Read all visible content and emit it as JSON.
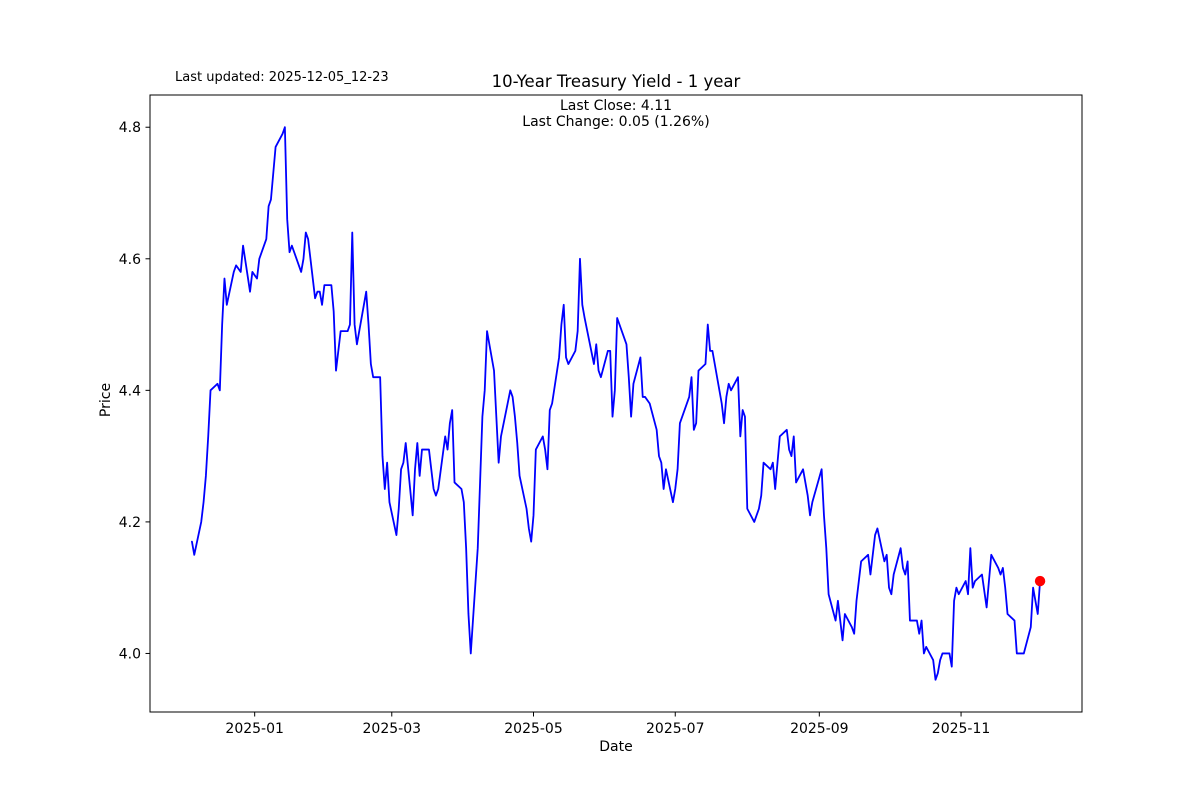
{
  "header": {
    "last_updated": "Last updated: 2025-12-05_12-23",
    "title": "10-Year Treasury Yield - 1 year",
    "subtitle_line1": "Last Close: 4.11",
    "subtitle_line2": "Last Change: 0.05 (1.26%)"
  },
  "chart_data": {
    "type": "line",
    "title": "10-Year Treasury Yield - 1 year",
    "xlabel": "Date",
    "ylabel": "Price",
    "last_close": 4.11,
    "last_change": 0.05,
    "last_change_pct": "1.26%",
    "line_color": "#0000ff",
    "marker_color": "#ff0000",
    "grid": false,
    "legend_position": "none",
    "ylim": [
      3.911,
      4.849
    ],
    "yticks": [
      4.0,
      4.2,
      4.4,
      4.6,
      4.8
    ],
    "ytick_labels": [
      "4.0",
      "4.2",
      "4.4",
      "4.6",
      "4.8"
    ],
    "xtick_dates": [
      "2025-01-01",
      "2025-03-01",
      "2025-05-01",
      "2025-07-01",
      "2025-09-01",
      "2025-11-01"
    ],
    "xtick_labels": [
      "2025-01",
      "2025-03",
      "2025-05",
      "2025-07",
      "2025-09",
      "2025-11"
    ],
    "x_margin_frac": 0.045,
    "dates": [
      "2024-12-05",
      "2024-12-06",
      "2024-12-09",
      "2024-12-10",
      "2024-12-11",
      "2024-12-12",
      "2024-12-13",
      "2024-12-16",
      "2024-12-17",
      "2024-12-18",
      "2024-12-19",
      "2024-12-20",
      "2024-12-23",
      "2024-12-24",
      "2024-12-26",
      "2024-12-27",
      "2024-12-30",
      "2024-12-31",
      "2025-01-02",
      "2025-01-03",
      "2025-01-06",
      "2025-01-07",
      "2025-01-08",
      "2025-01-10",
      "2025-01-13",
      "2025-01-14",
      "2025-01-15",
      "2025-01-16",
      "2025-01-17",
      "2025-01-21",
      "2025-01-22",
      "2025-01-23",
      "2025-01-24",
      "2025-01-27",
      "2025-01-28",
      "2025-01-29",
      "2025-01-30",
      "2025-01-31",
      "2025-02-03",
      "2025-02-04",
      "2025-02-05",
      "2025-02-06",
      "2025-02-07",
      "2025-02-10",
      "2025-02-11",
      "2025-02-12",
      "2025-02-13",
      "2025-02-14",
      "2025-02-18",
      "2025-02-19",
      "2025-02-20",
      "2025-02-21",
      "2025-02-24",
      "2025-02-25",
      "2025-02-26",
      "2025-02-27",
      "2025-02-28",
      "2025-03-03",
      "2025-03-04",
      "2025-03-05",
      "2025-03-06",
      "2025-03-07",
      "2025-03-10",
      "2025-03-11",
      "2025-03-12",
      "2025-03-13",
      "2025-03-14",
      "2025-03-17",
      "2025-03-18",
      "2025-03-19",
      "2025-03-20",
      "2025-03-21",
      "2025-03-24",
      "2025-03-25",
      "2025-03-26",
      "2025-03-27",
      "2025-03-28",
      "2025-03-31",
      "2025-04-01",
      "2025-04-02",
      "2025-04-03",
      "2025-04-04",
      "2025-04-07",
      "2025-04-08",
      "2025-04-09",
      "2025-04-10",
      "2025-04-11",
      "2025-04-14",
      "2025-04-15",
      "2025-04-16",
      "2025-04-17",
      "2025-04-21",
      "2025-04-22",
      "2025-04-23",
      "2025-04-24",
      "2025-04-25",
      "2025-04-28",
      "2025-04-29",
      "2025-04-30",
      "2025-05-01",
      "2025-05-02",
      "2025-05-05",
      "2025-05-06",
      "2025-05-07",
      "2025-05-08",
      "2025-05-09",
      "2025-05-12",
      "2025-05-13",
      "2025-05-14",
      "2025-05-15",
      "2025-05-16",
      "2025-05-19",
      "2025-05-20",
      "2025-05-21",
      "2025-05-22",
      "2025-05-23",
      "2025-05-27",
      "2025-05-28",
      "2025-05-29",
      "2025-05-30",
      "2025-06-02",
      "2025-06-03",
      "2025-06-04",
      "2025-06-05",
      "2025-06-06",
      "2025-06-09",
      "2025-06-10",
      "2025-06-11",
      "2025-06-12",
      "2025-06-13",
      "2025-06-16",
      "2025-06-17",
      "2025-06-18",
      "2025-06-20",
      "2025-06-23",
      "2025-06-24",
      "2025-06-25",
      "2025-06-26",
      "2025-06-27",
      "2025-06-30",
      "2025-07-01",
      "2025-07-02",
      "2025-07-03",
      "2025-07-07",
      "2025-07-08",
      "2025-07-09",
      "2025-07-10",
      "2025-07-11",
      "2025-07-14",
      "2025-07-15",
      "2025-07-16",
      "2025-07-17",
      "2025-07-18",
      "2025-07-21",
      "2025-07-22",
      "2025-07-23",
      "2025-07-24",
      "2025-07-25",
      "2025-07-28",
      "2025-07-29",
      "2025-07-30",
      "2025-07-31",
      "2025-08-01",
      "2025-08-04",
      "2025-08-05",
      "2025-08-06",
      "2025-08-07",
      "2025-08-08",
      "2025-08-11",
      "2025-08-12",
      "2025-08-13",
      "2025-08-14",
      "2025-08-15",
      "2025-08-18",
      "2025-08-19",
      "2025-08-20",
      "2025-08-21",
      "2025-08-22",
      "2025-08-25",
      "2025-08-26",
      "2025-08-27",
      "2025-08-28",
      "2025-08-29",
      "2025-09-02",
      "2025-09-03",
      "2025-09-04",
      "2025-09-05",
      "2025-09-08",
      "2025-09-09",
      "2025-09-10",
      "2025-09-11",
      "2025-09-12",
      "2025-09-15",
      "2025-09-16",
      "2025-09-17",
      "2025-09-18",
      "2025-09-19",
      "2025-09-22",
      "2025-09-23",
      "2025-09-24",
      "2025-09-25",
      "2025-09-26",
      "2025-09-29",
      "2025-09-30",
      "2025-10-01",
      "2025-10-02",
      "2025-10-03",
      "2025-10-06",
      "2025-10-07",
      "2025-10-08",
      "2025-10-09",
      "2025-10-10",
      "2025-10-13",
      "2025-10-14",
      "2025-10-15",
      "2025-10-16",
      "2025-10-17",
      "2025-10-20",
      "2025-10-21",
      "2025-10-22",
      "2025-10-23",
      "2025-10-24",
      "2025-10-27",
      "2025-10-28",
      "2025-10-29",
      "2025-10-30",
      "2025-10-31",
      "2025-11-03",
      "2025-11-04",
      "2025-11-05",
      "2025-11-06",
      "2025-11-07",
      "2025-11-10",
      "2025-11-12",
      "2025-11-13",
      "2025-11-14",
      "2025-11-17",
      "2025-11-18",
      "2025-11-19",
      "2025-11-20",
      "2025-11-21",
      "2025-11-24",
      "2025-11-25",
      "2025-11-26",
      "2025-11-28",
      "2025-12-01",
      "2025-12-02",
      "2025-12-03",
      "2025-12-04",
      "2025-12-05"
    ],
    "values": [
      4.17,
      4.15,
      4.2,
      4.23,
      4.27,
      4.33,
      4.4,
      4.41,
      4.4,
      4.5,
      4.57,
      4.53,
      4.58,
      4.59,
      4.58,
      4.62,
      4.55,
      4.58,
      4.57,
      4.6,
      4.63,
      4.68,
      4.69,
      4.77,
      4.79,
      4.8,
      4.66,
      4.61,
      4.62,
      4.58,
      4.6,
      4.64,
      4.63,
      4.54,
      4.55,
      4.55,
      4.53,
      4.56,
      4.56,
      4.52,
      4.43,
      4.46,
      4.49,
      4.49,
      4.5,
      4.64,
      4.5,
      4.47,
      4.55,
      4.5,
      4.44,
      4.42,
      4.42,
      4.3,
      4.25,
      4.29,
      4.23,
      4.18,
      4.22,
      4.28,
      4.29,
      4.32,
      4.21,
      4.28,
      4.32,
      4.27,
      4.31,
      4.31,
      4.28,
      4.25,
      4.24,
      4.25,
      4.33,
      4.31,
      4.35,
      4.37,
      4.26,
      4.25,
      4.23,
      4.16,
      4.06,
      4.0,
      4.16,
      4.26,
      4.36,
      4.4,
      4.49,
      4.43,
      4.36,
      4.29,
      4.33,
      4.4,
      4.39,
      4.36,
      4.32,
      4.27,
      4.22,
      4.19,
      4.17,
      4.21,
      4.31,
      4.33,
      4.31,
      4.28,
      4.37,
      4.38,
      4.45,
      4.5,
      4.53,
      4.45,
      4.44,
      4.46,
      4.49,
      4.6,
      4.53,
      4.51,
      4.44,
      4.47,
      4.43,
      4.42,
      4.46,
      4.46,
      4.36,
      4.4,
      4.51,
      4.48,
      4.47,
      4.42,
      4.36,
      4.41,
      4.45,
      4.39,
      4.39,
      4.38,
      4.34,
      4.3,
      4.29,
      4.25,
      4.28,
      4.23,
      4.25,
      4.28,
      4.35,
      4.39,
      4.42,
      4.34,
      4.35,
      4.43,
      4.44,
      4.5,
      4.46,
      4.46,
      4.44,
      4.38,
      4.35,
      4.39,
      4.41,
      4.4,
      4.42,
      4.33,
      4.37,
      4.36,
      4.22,
      4.2,
      4.21,
      4.22,
      4.24,
      4.29,
      4.28,
      4.29,
      4.25,
      4.29,
      4.33,
      4.34,
      4.31,
      4.3,
      4.33,
      4.26,
      4.28,
      4.26,
      4.24,
      4.21,
      4.23,
      4.28,
      4.21,
      4.16,
      4.09,
      4.05,
      4.08,
      4.05,
      4.02,
      4.06,
      4.04,
      4.03,
      4.08,
      4.11,
      4.14,
      4.15,
      4.12,
      4.15,
      4.18,
      4.19,
      4.14,
      4.15,
      4.1,
      4.09,
      4.12,
      4.16,
      4.13,
      4.12,
      4.14,
      4.05,
      4.05,
      4.03,
      4.05,
      4.0,
      4.01,
      3.99,
      3.96,
      3.97,
      3.99,
      4.0,
      4.0,
      3.98,
      4.08,
      4.1,
      4.09,
      4.11,
      4.09,
      4.16,
      4.1,
      4.11,
      4.12,
      4.07,
      4.11,
      4.15,
      4.13,
      4.12,
      4.13,
      4.1,
      4.06,
      4.05,
      4.0,
      4.0,
      4.0,
      4.04,
      4.1,
      4.08,
      4.06,
      4.11
    ]
  }
}
